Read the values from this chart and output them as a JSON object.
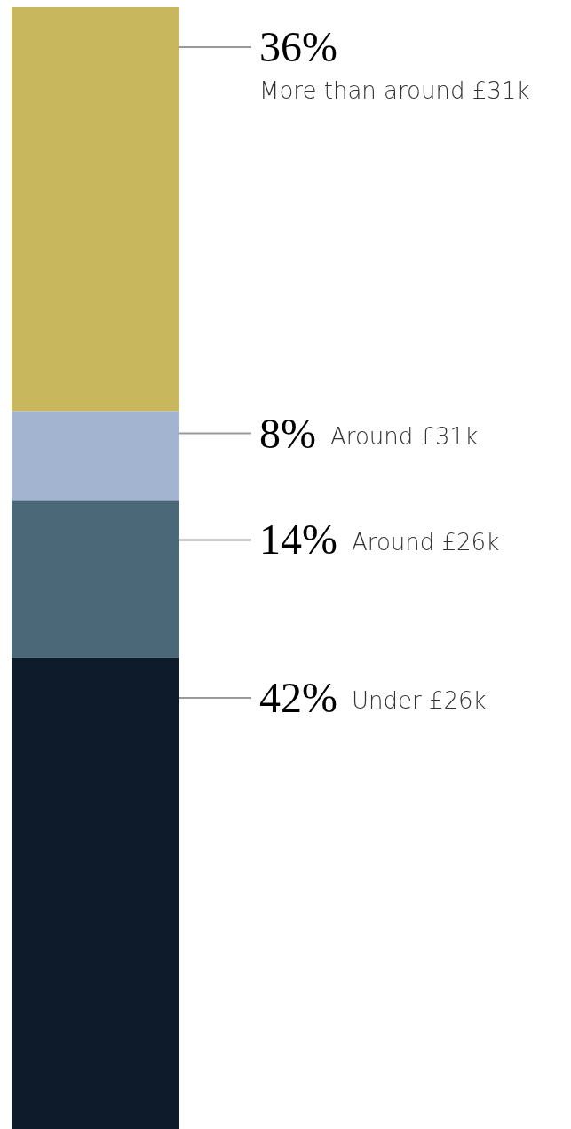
{
  "chart_data": {
    "type": "bar",
    "stacked": true,
    "categories": [
      null
    ],
    "series": [
      {
        "name": "Under £26k",
        "color": "#0d1b2a",
        "values": [
          42
        ],
        "value_labels": [
          "42%"
        ]
      },
      {
        "name": "Around £26k",
        "color": "#4b6878",
        "values": [
          14
        ],
        "value_labels": [
          "14%"
        ]
      },
      {
        "name": "Around £31k",
        "color": "#a2b4cf",
        "values": [
          8
        ],
        "value_labels": [
          "8%"
        ]
      },
      {
        "name": "More than around £31k",
        "color": "#c9b75e",
        "values": [
          36
        ],
        "value_labels": [
          "36%"
        ]
      }
    ]
  }
}
